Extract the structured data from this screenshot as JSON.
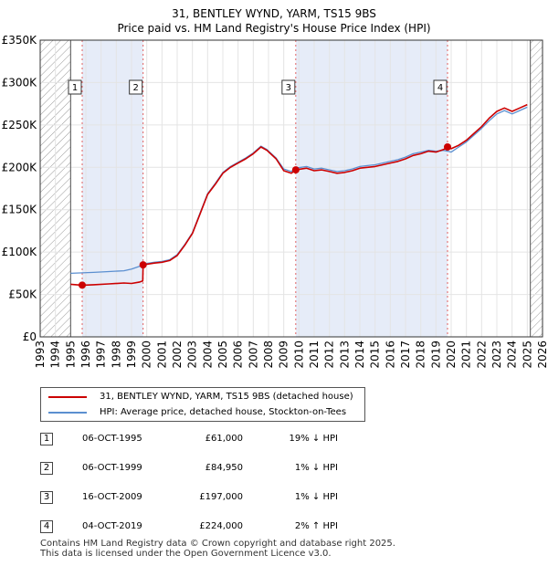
{
  "title": "31, BENTLEY WYND, YARM, TS15 9BS",
  "subtitle": "Price paid vs. HM Land Registry's House Price Index (HPI)",
  "colors": {
    "property": "#cc0000",
    "hpi": "#5b8fd0",
    "shade": "#e6ecf8",
    "hatch": "#9a9a9a",
    "marker": "#cc0000"
  },
  "legend": {
    "property_label": "31, BENTLEY WYND, YARM, TS15 9BS (detached house)",
    "hpi_label": "HPI: Average price, detached house, Stockton-on-Tees"
  },
  "transactions": [
    {
      "num": "1",
      "date": "06-OCT-1995",
      "price": "£61,000",
      "hpi": "19% ↓ HPI"
    },
    {
      "num": "2",
      "date": "06-OCT-1999",
      "price": "£84,950",
      "hpi": "1% ↓ HPI"
    },
    {
      "num": "3",
      "date": "16-OCT-2009",
      "price": "£197,000",
      "hpi": "1% ↓ HPI"
    },
    {
      "num": "4",
      "date": "04-OCT-2019",
      "price": "£224,000",
      "hpi": "2% ↑ HPI"
    }
  ],
  "footer": {
    "line1": "Contains HM Land Registry data © Crown copyright and database right 2025.",
    "line2": "This data is licensed under the Open Government Licence v3.0."
  },
  "chart_data": {
    "type": "line",
    "title": "31, BENTLEY WYND, YARM, TS15 9BS",
    "xlabel": "",
    "ylabel": "",
    "xlim": [
      1993,
      2026
    ],
    "ylim": [
      0,
      350000
    ],
    "x_ticks": [
      1993,
      1994,
      1995,
      1996,
      1997,
      1998,
      1999,
      2000,
      2001,
      2002,
      2003,
      2004,
      2005,
      2006,
      2007,
      2008,
      2009,
      2010,
      2011,
      2012,
      2013,
      2014,
      2015,
      2016,
      2017,
      2018,
      2019,
      2020,
      2021,
      2022,
      2023,
      2024,
      2025,
      2026
    ],
    "y_ticks": [
      0,
      50000,
      100000,
      150000,
      200000,
      250000,
      300000,
      350000
    ],
    "y_tick_labels": [
      "£0",
      "£50K",
      "£100K",
      "£150K",
      "£200K",
      "£250K",
      "£300K",
      "£350K"
    ],
    "hatched_before": 1995.0,
    "hatched_after": 2025.2,
    "shaded_periods": [
      [
        1995.76,
        1999.76
      ],
      [
        2009.79,
        2019.76
      ]
    ],
    "sales": [
      {
        "label": "1",
        "x": 1995.76,
        "y": 61000
      },
      {
        "label": "2",
        "x": 1999.76,
        "y": 84950
      },
      {
        "label": "3",
        "x": 2009.79,
        "y": 197000
      },
      {
        "label": "4",
        "x": 2019.76,
        "y": 224000
      }
    ],
    "series": [
      {
        "name": "31, BENTLEY WYND, YARM, TS15 9BS (detached house)",
        "x": [
          1995.0,
          1995.76,
          1996.5,
          1997.5,
          1998.5,
          1999.0,
          1999.5,
          1999.74,
          1999.76,
          2000.5,
          2001.0,
          2001.5,
          2002.0,
          2002.5,
          2003.0,
          2003.5,
          2004.0,
          2004.5,
          2005.0,
          2005.5,
          2006.0,
          2006.5,
          2007.0,
          2007.5,
          2007.9,
          2008.5,
          2009.0,
          2009.5,
          2009.79,
          2010.5,
          2011.0,
          2011.5,
          2012.0,
          2012.5,
          2013.0,
          2013.5,
          2014.0,
          2014.5,
          2015.0,
          2015.5,
          2016.0,
          2016.5,
          2017.0,
          2017.5,
          2018.0,
          2018.5,
          2019.0,
          2019.5,
          2019.76,
          2020.0,
          2020.5,
          2021.0,
          2021.5,
          2022.0,
          2022.5,
          2023.0,
          2023.5,
          2024.0,
          2024.5,
          2025.0
        ],
        "y": [
          62000,
          61000,
          61500,
          62500,
          63500,
          63000,
          64500,
          66000,
          84950,
          87000,
          88000,
          90000,
          96000,
          108000,
          122000,
          145000,
          168000,
          180000,
          193000,
          200000,
          205000,
          210000,
          216000,
          224000,
          220000,
          210000,
          196000,
          193000,
          197000,
          199000,
          196000,
          197000,
          195000,
          193000,
          194000,
          196000,
          199000,
          200000,
          201000,
          203000,
          205000,
          207000,
          210000,
          214000,
          216000,
          219000,
          218000,
          221000,
          224000,
          222000,
          226000,
          232000,
          240000,
          248000,
          258000,
          266000,
          270000,
          266000,
          270000,
          274000
        ]
      },
      {
        "name": "HPI: Average price, detached house, Stockton-on-Tees",
        "x": [
          1995.0,
          1995.76,
          1996.5,
          1997.5,
          1998.5,
          1999.0,
          1999.5,
          1999.76,
          2000.5,
          2001.0,
          2001.5,
          2002.0,
          2002.5,
          2003.0,
          2003.5,
          2004.0,
          2004.5,
          2005.0,
          2005.5,
          2006.0,
          2006.5,
          2007.0,
          2007.5,
          2007.9,
          2008.5,
          2009.0,
          2009.5,
          2009.79,
          2010.5,
          2011.0,
          2011.5,
          2012.0,
          2012.5,
          2013.0,
          2013.5,
          2014.0,
          2014.5,
          2015.0,
          2015.5,
          2016.0,
          2016.5,
          2017.0,
          2017.5,
          2018.0,
          2018.5,
          2019.0,
          2019.5,
          2019.76,
          2020.0,
          2020.5,
          2021.0,
          2021.5,
          2022.0,
          2022.5,
          2023.0,
          2023.5,
          2024.0,
          2024.5,
          2025.0
        ],
        "y": [
          75000,
          75500,
          76000,
          77000,
          78000,
          80000,
          83000,
          86000,
          88000,
          89000,
          91000,
          97000,
          109000,
          123000,
          146000,
          169000,
          181000,
          194000,
          201000,
          206000,
          211000,
          217000,
          225000,
          221000,
          211000,
          198000,
          195000,
          199000,
          201000,
          198000,
          199000,
          197000,
          195000,
          196000,
          198000,
          201000,
          202000,
          203000,
          205000,
          207000,
          209000,
          212000,
          216000,
          218000,
          220000,
          219000,
          220000,
          219000,
          218000,
          224000,
          230000,
          238000,
          246000,
          255000,
          263000,
          267000,
          263000,
          267000,
          271000
        ]
      }
    ]
  }
}
